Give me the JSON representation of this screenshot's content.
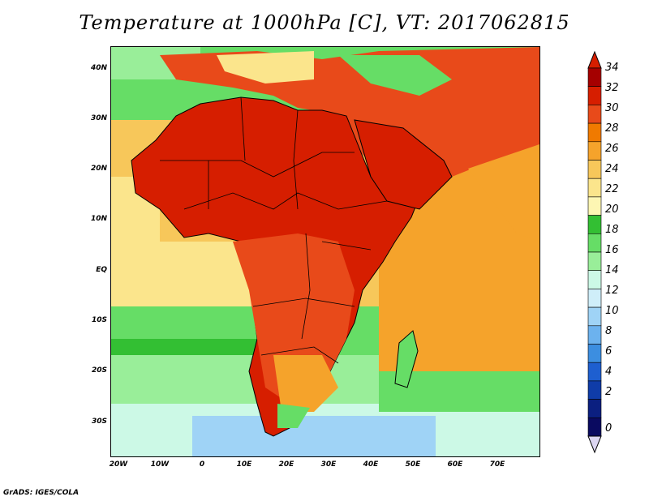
{
  "title": "Temperature at 1000hPa [C], VT: 2017062815",
  "credit": "GrADS: IGES/COLA",
  "map": {
    "lat_labels": [
      "40N",
      "30N",
      "20N",
      "10N",
      "EQ",
      "10S",
      "20S",
      "30S"
    ],
    "lon_labels": [
      "20W",
      "10W",
      "0",
      "10E",
      "20E",
      "30E",
      "40E",
      "50E",
      "60E",
      "70E"
    ],
    "extent": {
      "lon_min": -22,
      "lon_max": 79,
      "lat_min": -36,
      "lat_max": 45
    }
  },
  "colorbar": {
    "labels": [
      "34",
      "32",
      "30",
      "28",
      "26",
      "24",
      "22",
      "20",
      "18",
      "16",
      "14",
      "12",
      "10",
      "8",
      "6",
      "4",
      "2",
      "0"
    ],
    "colors": [
      "#a50000",
      "#d61e00",
      "#e84a1a",
      "#f07a00",
      "#f5a32b",
      "#f7c75a",
      "#fbe58c",
      "#fdf6b3",
      "#33bf33",
      "#66dd66",
      "#99ee99",
      "#ccf9e6",
      "#cfeef9",
      "#9fd3f6",
      "#6cb2ee",
      "#3c8ee0",
      "#1e5fd0",
      "#0f3ca8",
      "#0b1f80",
      "#0a0a60"
    ],
    "over_color": "#d61e00",
    "under_color": "#dcd6f2"
  },
  "colors": {
    "ocean_hot": "#f7c75a",
    "ocean_warm": "#fbe58c",
    "ocean_green": "#66dd66",
    "ocean_cool": "#ccf9e6",
    "ocean_blue": "#9fd3f6",
    "land_hot": "#d61e00",
    "land_red": "#e84a1a",
    "land_orange": "#f5a32b",
    "border": "#000000"
  }
}
